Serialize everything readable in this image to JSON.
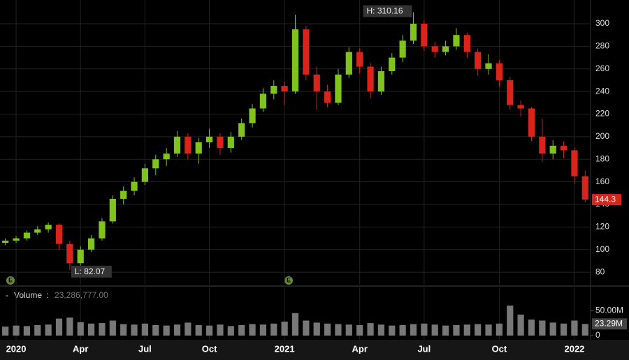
{
  "chart_data": {
    "type": "candlestick",
    "categories": [
      null,
      "2020",
      null,
      null,
      null,
      null,
      null,
      "Apr",
      null,
      null,
      null,
      null,
      null,
      "Jul",
      null,
      null,
      null,
      null,
      null,
      "Oct",
      null,
      null,
      null,
      null,
      null,
      null,
      "2021",
      null,
      null,
      null,
      null,
      null,
      null,
      "Apr",
      null,
      null,
      null,
      null,
      null,
      "Jul",
      null,
      null,
      null,
      null,
      null,
      null,
      "Oct",
      null,
      null,
      null,
      null,
      null,
      null,
      "2022",
      null
    ],
    "open": [
      106,
      108,
      110,
      115,
      118,
      122,
      105,
      88,
      100,
      110,
      125,
      145,
      152,
      160,
      172,
      180,
      185,
      200,
      185,
      195,
      200,
      190,
      200,
      212,
      225,
      238,
      245,
      240,
      295,
      255,
      240,
      230,
      255,
      275,
      262,
      240,
      258,
      270,
      285,
      300,
      280,
      275,
      280,
      290,
      275,
      260,
      265,
      250,
      228,
      225,
      200,
      185,
      192,
      188,
      165
    ],
    "high": [
      110,
      112,
      117,
      121,
      124,
      123,
      108,
      103,
      113,
      128,
      148,
      156,
      164,
      176,
      184,
      190,
      205,
      203,
      199,
      207,
      203,
      204,
      216,
      229,
      243,
      250,
      249,
      308,
      298,
      262,
      246,
      260,
      279,
      278,
      265,
      262,
      274,
      290,
      310.16,
      303,
      284,
      285,
      296,
      292,
      278,
      273,
      268,
      253,
      232,
      226,
      216,
      197,
      196,
      190,
      170
    ],
    "low": [
      104,
      106,
      108,
      113,
      115,
      100,
      82.07,
      86,
      98,
      108,
      123,
      140,
      148,
      157,
      166,
      174,
      182,
      180,
      176,
      190,
      184,
      186,
      197,
      208,
      222,
      233,
      228,
      238,
      250,
      224,
      226,
      228,
      252,
      256,
      234,
      237,
      255,
      266,
      282,
      276,
      270,
      272,
      277,
      270,
      254,
      255,
      244,
      224,
      218,
      196,
      178,
      180,
      181,
      158,
      142
    ],
    "close": [
      108,
      110,
      115,
      118,
      122,
      105,
      88,
      100,
      110,
      125,
      145,
      152,
      160,
      172,
      180,
      185,
      200,
      185,
      195,
      200,
      190,
      200,
      212,
      225,
      238,
      245,
      240,
      295,
      255,
      240,
      230,
      255,
      275,
      262,
      240,
      258,
      270,
      285,
      300,
      280,
      275,
      280,
      290,
      275,
      260,
      265,
      250,
      228,
      225,
      200,
      185,
      192,
      188,
      165,
      144.3
    ],
    "volume": [
      18000000,
      20000000,
      19000000,
      21000000,
      22000000,
      34000000,
      36000000,
      27000000,
      24000000,
      25000000,
      30000000,
      23000000,
      22000000,
      24000000,
      21000000,
      20000000,
      22000000,
      26000000,
      21000000,
      20000000,
      22000000,
      19000000,
      21000000,
      23000000,
      22000000,
      24000000,
      28000000,
      45000000,
      30000000,
      26000000,
      24000000,
      23000000,
      22000000,
      21000000,
      25000000,
      22000000,
      20000000,
      21000000,
      23000000,
      24000000,
      22000000,
      20000000,
      21000000,
      22000000,
      23000000,
      22000000,
      24000000,
      60000000,
      42000000,
      32000000,
      30000000,
      26000000,
      24000000,
      30000000,
      23286777
    ],
    "up_color": "#7fc31c",
    "down_color": "#d9241c",
    "volume_color": "#777777",
    "ylim": [
      69,
      321
    ],
    "yticks": [
      80,
      100,
      120,
      140,
      160,
      180,
      200,
      220,
      240,
      260,
      280,
      300
    ],
    "vlim": [
      0,
      60000000
    ],
    "vticks": [
      0,
      {
        "value": 50000000,
        "label": "50.00M"
      }
    ],
    "high_label": "H: 310.16",
    "low_label": "L: 82.07",
    "last_price_label": "144.3",
    "volume_title": "Volume",
    "volume_last_text": "23,286,777.00",
    "volume_last_label": "23.29M",
    "event_label": "E",
    "grid": true
  }
}
